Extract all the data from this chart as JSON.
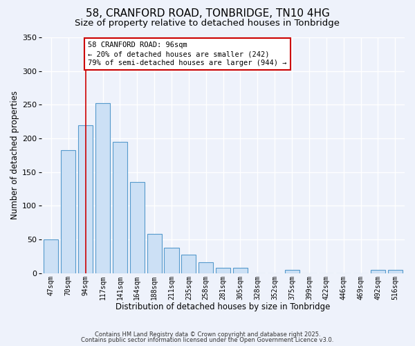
{
  "title": "58, CRANFORD ROAD, TONBRIDGE, TN10 4HG",
  "subtitle": "Size of property relative to detached houses in Tonbridge",
  "xlabel": "Distribution of detached houses by size in Tonbridge",
  "ylabel": "Number of detached properties",
  "bar_labels": [
    "47sqm",
    "70sqm",
    "94sqm",
    "117sqm",
    "141sqm",
    "164sqm",
    "188sqm",
    "211sqm",
    "235sqm",
    "258sqm",
    "281sqm",
    "305sqm",
    "328sqm",
    "352sqm",
    "375sqm",
    "399sqm",
    "422sqm",
    "446sqm",
    "469sqm",
    "492sqm",
    "516sqm"
  ],
  "bar_values": [
    50,
    183,
    220,
    252,
    195,
    135,
    58,
    38,
    28,
    16,
    8,
    8,
    0,
    0,
    5,
    0,
    0,
    0,
    0,
    5,
    5
  ],
  "bar_color": "#cce0f5",
  "bar_edge_color": "#5599cc",
  "vline_x": 2,
  "vline_color": "#cc0000",
  "annotation_text": "58 CRANFORD ROAD: 96sqm\n← 20% of detached houses are smaller (242)\n79% of semi-detached houses are larger (944) →",
  "annotation_box_color": "#ffffff",
  "annotation_box_edge": "#cc0000",
  "ylim": [
    0,
    350
  ],
  "yticks": [
    0,
    50,
    100,
    150,
    200,
    250,
    300,
    350
  ],
  "footer_line1": "Contains HM Land Registry data © Crown copyright and database right 2025.",
  "footer_line2": "Contains public sector information licensed under the Open Government Licence v3.0.",
  "bg_color": "#eef2fb",
  "title_fontsize": 11,
  "subtitle_fontsize": 9.5
}
